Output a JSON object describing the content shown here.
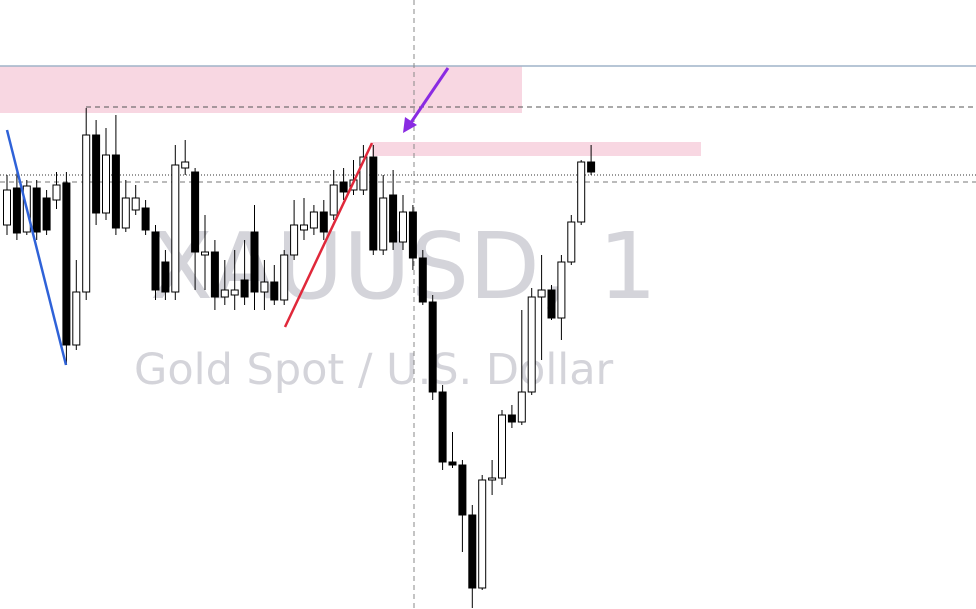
{
  "chart_data": {
    "type": "candlestick",
    "title": "XAUUSD, 1",
    "subtitle": "Gold Spot / U.S. Dollar",
    "ylim": [
      0,
      609
    ],
    "up_color": "#ffffff",
    "down_color": "#000000",
    "edge_color": "#000000",
    "open": [
      384,
      421,
      377,
      421,
      411,
      409,
      426,
      264,
      317,
      474,
      396,
      454,
      381,
      399,
      401,
      377,
      347,
      317,
      441,
      437,
      354,
      357,
      312,
      314,
      329,
      377,
      317,
      327,
      309,
      354,
      379,
      381,
      397,
      394,
      427,
      419,
      419,
      452,
      359,
      414,
      367,
      397,
      351,
      307,
      217,
      147,
      144,
      94,
      21,
      129,
      131,
      194,
      187,
      217,
      312,
      319,
      291,
      347,
      387,
      447
    ],
    "high": [
      434,
      437,
      429,
      429,
      419,
      437,
      437,
      349,
      501,
      489,
      481,
      494,
      429,
      424,
      409,
      384,
      359,
      464,
      469,
      441,
      394,
      369,
      349,
      359,
      369,
      404,
      349,
      344,
      359,
      409,
      411,
      404,
      409,
      439,
      441,
      449,
      464,
      464,
      434,
      439,
      414,
      404,
      359,
      314,
      224,
      177,
      149,
      104,
      134,
      149,
      199,
      204,
      299,
      321,
      354,
      324,
      354,
      394,
      449,
      464
    ],
    "low": [
      374,
      369,
      374,
      369,
      374,
      400,
      244,
      259,
      309,
      384,
      389,
      374,
      377,
      394,
      374,
      309,
      309,
      309,
      434,
      319,
      319,
      299,
      304,
      299,
      304,
      299,
      299,
      304,
      304,
      349,
      369,
      374,
      369,
      389,
      409,
      414,
      414,
      354,
      354,
      359,
      359,
      339,
      304,
      209,
      139,
      141,
      57,
      1,
      19,
      114,
      124,
      181,
      184,
      214,
      249,
      289,
      269,
      344,
      384,
      434
    ],
    "close": [
      419,
      376,
      423,
      377,
      379,
      424,
      264,
      317,
      474,
      396,
      454,
      381,
      411,
      411,
      379,
      319,
      317,
      444,
      447,
      357,
      357,
      312,
      319,
      319,
      312,
      317,
      327,
      309,
      354,
      384,
      384,
      397,
      377,
      424,
      417,
      429,
      452,
      359,
      411,
      367,
      397,
      351,
      307,
      217,
      147,
      144,
      94,
      21,
      129,
      131,
      194,
      187,
      217,
      312,
      319,
      291,
      347,
      387,
      447,
      437
    ]
  }
}
